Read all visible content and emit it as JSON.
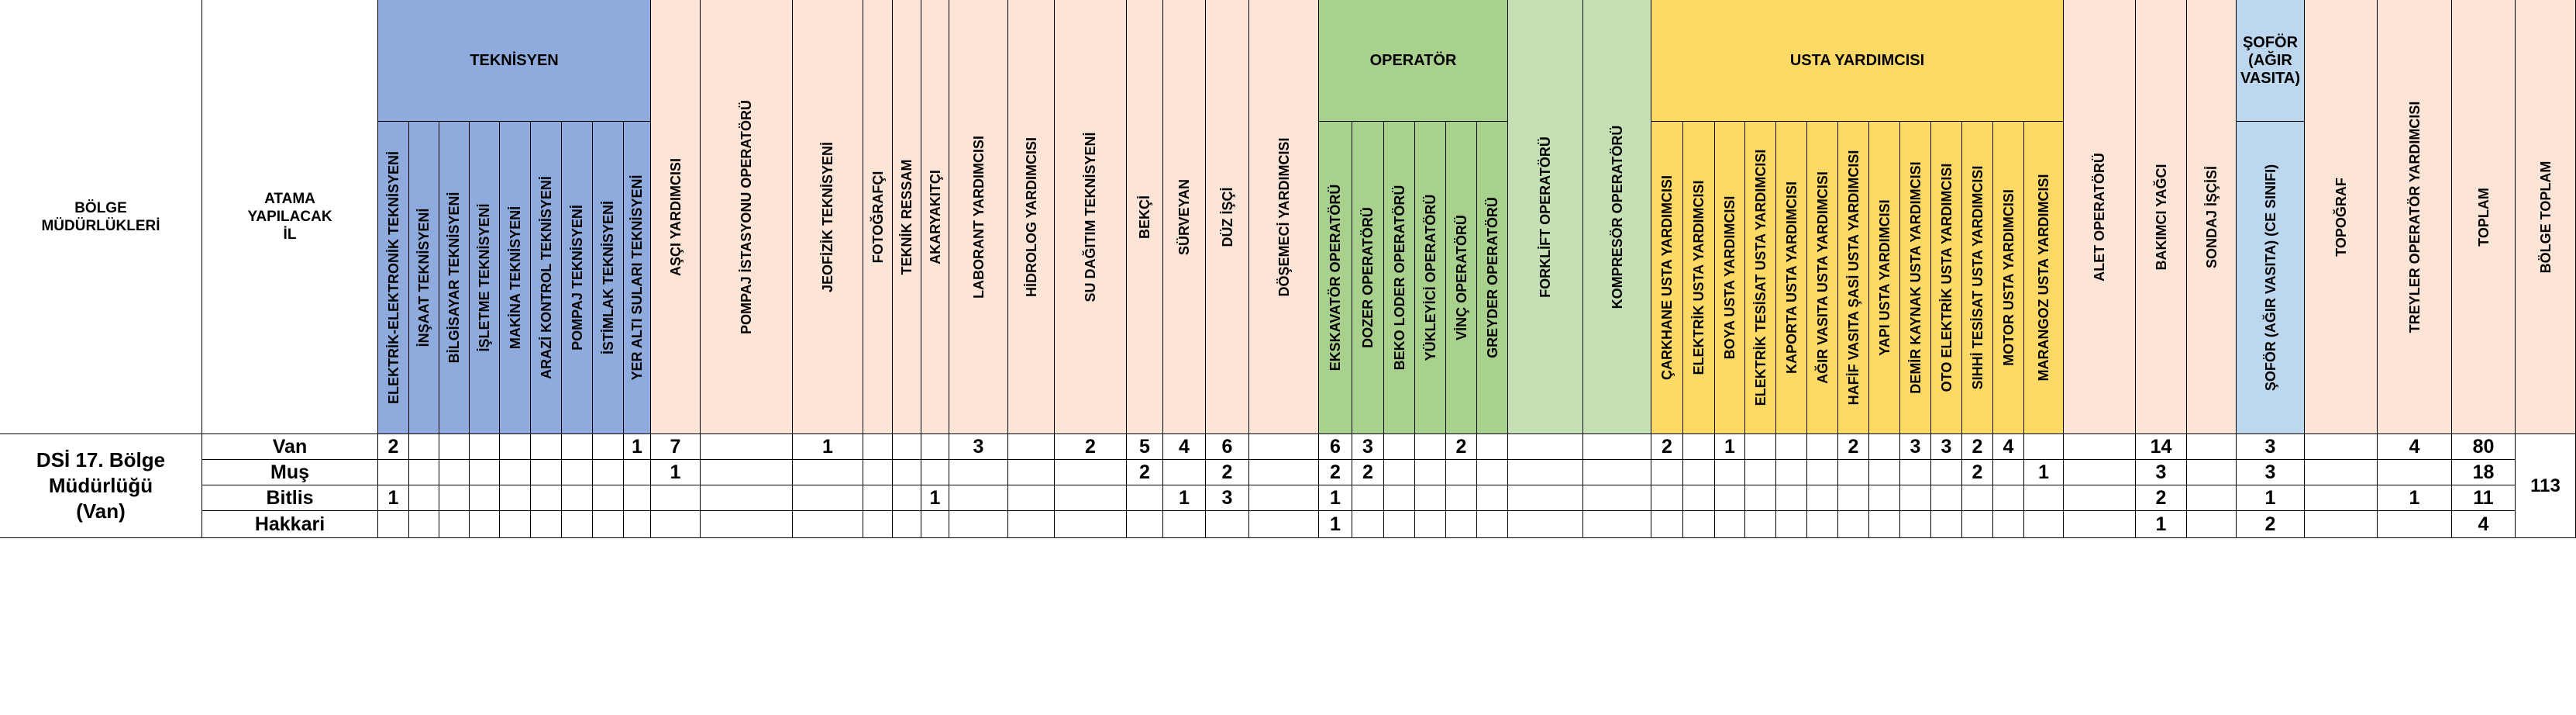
{
  "colors": {
    "teknisyen": "#8faadc",
    "operator": "#a9d18e",
    "operator_light": "#c5e0b4",
    "usta": "#ffd966",
    "peach": "#fce4d6",
    "sofor": "#bdd7ee",
    "white": "#ffffff"
  },
  "header": {
    "region_label": "BÖLGE\nMÜDÜRLÜKLERİ",
    "city_label": "ATAMA\nYAPILACAK\nİL",
    "groups": {
      "teknisyen": "TEKNİSYEN",
      "operator": "OPERATÖR",
      "usta": "USTA YARDIMCISI",
      "sofor": "ŞOFÖR\n(AĞIR\nVASITA)"
    },
    "columns": [
      "ELEKTRİK-ELEKTRONİK TEKNİSYENİ",
      "İNŞAAT TEKNİSYENİ",
      "BİLGİSAYAR TEKNİSYENİ",
      "İŞLETME TEKNİSYENİ",
      "MAKİNA TEKNİSYENİ",
      "ARAZİ KONTROL TEKNİSYENİ",
      "POMPAJ TEKNİSYENİ",
      "İSTİMLAK TEKNİSYENİ",
      "YER ALTI SULARI TEKNİSYENİ",
      "AŞÇI YARDIMCISI",
      "POMPAJ İSTASYONU OPERATÖRÜ",
      "JEOFİZİK TEKNİSYENİ",
      "FOTOĞRAFÇI",
      "TEKNİK RESSAM",
      "AKARYAKITÇI",
      "LABORANT YARDIMCISI",
      "HİDROLOG YARDIMCISI",
      "SU DAĞITIM TEKNİSYENİ",
      "BEKÇİ",
      "SÜRVEYAN",
      "DÜZ İŞÇİ",
      "DÖŞEMECİ YARDIMCISI",
      "EKSKAVATÖR OPERATÖRÜ",
      "DOZER OPERATÖRÜ",
      "BEKO LODER OPERATÖRÜ",
      "YÜKLEYİCİ OPERATÖRÜ",
      "VİNÇ OPERATÖRÜ",
      "GREYDER OPERATÖRÜ",
      "FORKLİFT OPERATÖRÜ",
      "KOMPRESÖR OPERATÖRÜ",
      "ÇARKHANE USTA YARDIMCISI",
      "ELEKTRİK USTA YARDIMCISI",
      "BOYA USTA YARDIMCISI",
      "ELEKTRİK TESİSAT USTA YARDIMCISI",
      "KAPORTA USTA YARDIMCISI",
      "AĞIR VASITA USTA YARDIMCISI",
      "HAFİF VASITA ŞASİ USTA YARDIMCISI",
      "YAPI USTA YARDIMCISI",
      "DEMİR KAYNAK USTA YARDIMCISI",
      "OTO ELEKTRİK USTA YARDIMCISI",
      "SIHHİ TESİSAT USTA YARDIMCISI",
      "MOTOR USTA YARDIMCISI",
      "MARANGOZ USTA YARDIMCISI",
      "ALET OPERATÖRÜ",
      "BAKIMCI YAĞCI",
      "SONDAJ İŞÇİSİ",
      "ŞOFÖR (AĞIR VASITA) (CE SINIFI)",
      "TOPOĞRAF",
      "TREYLER OPERATÖR YARDIMCISI",
      "TOPLAM",
      "BÖLGE TOPLAM"
    ]
  },
  "region": {
    "name": "DSİ 17. Bölge\nMüdürlüğü\n(Van)",
    "total": "113"
  },
  "rows": [
    {
      "city": "Van",
      "values": [
        "2",
        "",
        "",
        "",
        "",
        "",
        "",
        "",
        "1",
        "7",
        "",
        "1",
        "",
        "",
        "",
        "3",
        "",
        "2",
        "5",
        "4",
        "6",
        "",
        "6",
        "3",
        "",
        "",
        "2",
        "",
        "",
        "",
        "2",
        "",
        "1",
        "",
        "",
        "",
        "2",
        "",
        "3",
        "3",
        "2",
        "4",
        "",
        "",
        "14",
        "",
        "3",
        "",
        "4",
        "80"
      ]
    },
    {
      "city": "Muş",
      "values": [
        "",
        "",
        "",
        "",
        "",
        "",
        "",
        "",
        "",
        "1",
        "",
        "",
        "",
        "",
        "",
        "",
        "",
        "",
        "2",
        "",
        "2",
        "",
        "2",
        "2",
        "",
        "",
        "",
        "",
        "",
        "",
        "",
        "",
        "",
        "",
        "",
        "",
        "",
        "",
        "",
        "",
        "2",
        "",
        "1",
        "",
        "3",
        "",
        "3",
        "",
        "",
        "18"
      ]
    },
    {
      "city": "Bitlis",
      "values": [
        "1",
        "",
        "",
        "",
        "",
        "",
        "",
        "",
        "",
        "",
        "",
        "",
        "",
        "",
        "1",
        "",
        "",
        "",
        "",
        "1",
        "3",
        "",
        "1",
        "",
        "",
        "",
        "",
        "",
        "",
        "",
        "",
        "",
        "",
        "",
        "",
        "",
        "",
        "",
        "",
        "",
        "",
        "",
        "",
        "",
        "2",
        "",
        "1",
        "",
        "1",
        "11"
      ]
    },
    {
      "city": "Hakkari",
      "values": [
        "",
        "",
        "",
        "",
        "",
        "",
        "",
        "",
        "",
        "",
        "",
        "",
        "",
        "",
        "",
        "",
        "",
        "",
        "",
        "",
        "",
        "",
        "1",
        "",
        "",
        "",
        "",
        "",
        "",
        "",
        "",
        "",
        "",
        "",
        "",
        "",
        "",
        "",
        "",
        "",
        "",
        "",
        "",
        "",
        "1",
        "",
        "2",
        "",
        "",
        "4"
      ]
    }
  ]
}
